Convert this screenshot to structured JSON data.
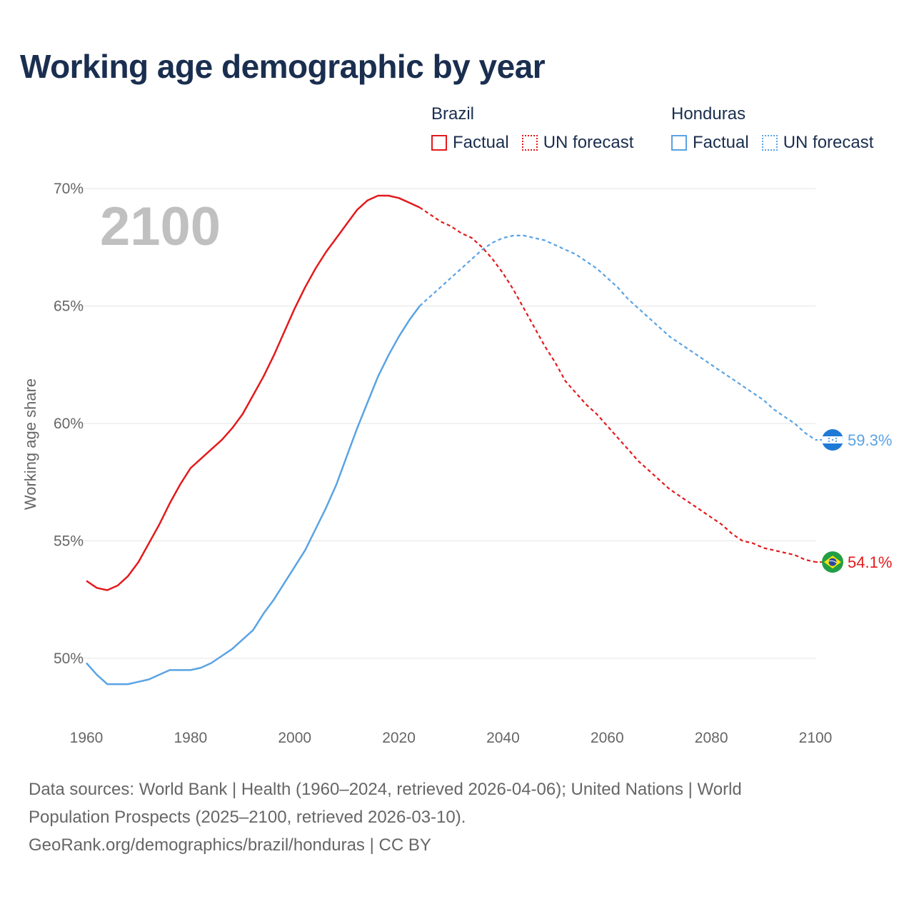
{
  "title": "Working age demographic by year",
  "legend": {
    "groups": [
      {
        "name": "Brazil",
        "color": "#e31a1c",
        "factual": "Factual",
        "forecast": "UN forecast"
      },
      {
        "name": "Honduras",
        "color": "#5aa3e3",
        "factual": "Factual",
        "forecast": "UN forecast"
      }
    ]
  },
  "sources": {
    "line1": "Data sources: World Bank | Health (1960–2024, retrieved 2026-04-06); United Nations | World",
    "line2": "Population Prospects (2025–2100, retrieved 2026-03-10).",
    "line3": "GeoRank.org/demographics/brazil/honduras | CC BY"
  },
  "chart_data": {
    "type": "line",
    "year_label": "2100",
    "ylabel": "Working age share",
    "xlim": [
      1960,
      2100
    ],
    "ylim": [
      47.2,
      70.4
    ],
    "x_ticks": [
      1960,
      1980,
      2000,
      2020,
      2040,
      2060,
      2080,
      2100
    ],
    "y_ticks": [
      50,
      55,
      60,
      65,
      70
    ],
    "y_tick_labels": [
      "50%",
      "55%",
      "60%",
      "65%",
      "70%"
    ],
    "factual_range": [
      1960,
      2024
    ],
    "forecast_range": [
      2024,
      2100
    ],
    "series": [
      {
        "name": "Brazil",
        "color": "#e31a1c",
        "end_label": "54.1%",
        "flag": "brazil-flag",
        "points": [
          [
            1960,
            53.3
          ],
          [
            1962,
            53.0
          ],
          [
            1964,
            52.9
          ],
          [
            1966,
            53.1
          ],
          [
            1968,
            53.5
          ],
          [
            1970,
            54.1
          ],
          [
            1972,
            54.9
          ],
          [
            1974,
            55.7
          ],
          [
            1976,
            56.6
          ],
          [
            1978,
            57.4
          ],
          [
            1980,
            58.1
          ],
          [
            1982,
            58.5
          ],
          [
            1984,
            58.9
          ],
          [
            1986,
            59.3
          ],
          [
            1988,
            59.8
          ],
          [
            1990,
            60.4
          ],
          [
            1992,
            61.2
          ],
          [
            1994,
            62.0
          ],
          [
            1996,
            62.9
          ],
          [
            1998,
            63.9
          ],
          [
            2000,
            64.9
          ],
          [
            2002,
            65.8
          ],
          [
            2004,
            66.6
          ],
          [
            2006,
            67.3
          ],
          [
            2008,
            67.9
          ],
          [
            2010,
            68.5
          ],
          [
            2012,
            69.1
          ],
          [
            2014,
            69.5
          ],
          [
            2016,
            69.7
          ],
          [
            2018,
            69.7
          ],
          [
            2020,
            69.6
          ],
          [
            2022,
            69.4
          ],
          [
            2024,
            69.2
          ],
          [
            2026,
            68.9
          ],
          [
            2028,
            68.6
          ],
          [
            2030,
            68.4
          ],
          [
            2032,
            68.1
          ],
          [
            2034,
            67.9
          ],
          [
            2036,
            67.5
          ],
          [
            2038,
            67.0
          ],
          [
            2040,
            66.4
          ],
          [
            2042,
            65.7
          ],
          [
            2044,
            64.9
          ],
          [
            2046,
            64.1
          ],
          [
            2048,
            63.3
          ],
          [
            2050,
            62.6
          ],
          [
            2052,
            61.8
          ],
          [
            2054,
            61.3
          ],
          [
            2056,
            60.8
          ],
          [
            2058,
            60.4
          ],
          [
            2060,
            59.9
          ],
          [
            2062,
            59.4
          ],
          [
            2064,
            58.9
          ],
          [
            2066,
            58.4
          ],
          [
            2068,
            58.0
          ],
          [
            2070,
            57.6
          ],
          [
            2072,
            57.2
          ],
          [
            2074,
            56.9
          ],
          [
            2076,
            56.6
          ],
          [
            2078,
            56.3
          ],
          [
            2080,
            56.0
          ],
          [
            2082,
            55.7
          ],
          [
            2084,
            55.3
          ],
          [
            2086,
            55.0
          ],
          [
            2088,
            54.9
          ],
          [
            2090,
            54.7
          ],
          [
            2092,
            54.6
          ],
          [
            2094,
            54.5
          ],
          [
            2096,
            54.4
          ],
          [
            2098,
            54.2
          ],
          [
            2100,
            54.1
          ]
        ]
      },
      {
        "name": "Honduras",
        "color": "#5aa3e3",
        "end_label": "59.3%",
        "flag": "honduras-flag",
        "points": [
          [
            1960,
            49.8
          ],
          [
            1962,
            49.3
          ],
          [
            1964,
            48.9
          ],
          [
            1966,
            48.9
          ],
          [
            1968,
            48.9
          ],
          [
            1970,
            49.0
          ],
          [
            1972,
            49.1
          ],
          [
            1974,
            49.3
          ],
          [
            1976,
            49.5
          ],
          [
            1978,
            49.5
          ],
          [
            1980,
            49.5
          ],
          [
            1982,
            49.6
          ],
          [
            1984,
            49.8
          ],
          [
            1986,
            50.1
          ],
          [
            1988,
            50.4
          ],
          [
            1990,
            50.8
          ],
          [
            1992,
            51.2
          ],
          [
            1994,
            51.9
          ],
          [
            1996,
            52.5
          ],
          [
            1998,
            53.2
          ],
          [
            2000,
            53.9
          ],
          [
            2002,
            54.6
          ],
          [
            2004,
            55.5
          ],
          [
            2006,
            56.4
          ],
          [
            2008,
            57.4
          ],
          [
            2010,
            58.6
          ],
          [
            2012,
            59.8
          ],
          [
            2014,
            60.9
          ],
          [
            2016,
            62.0
          ],
          [
            2018,
            62.9
          ],
          [
            2020,
            63.7
          ],
          [
            2022,
            64.4
          ],
          [
            2024,
            65.0
          ],
          [
            2026,
            65.4
          ],
          [
            2028,
            65.8
          ],
          [
            2030,
            66.2
          ],
          [
            2032,
            66.6
          ],
          [
            2034,
            67.0
          ],
          [
            2036,
            67.4
          ],
          [
            2038,
            67.7
          ],
          [
            2040,
            67.9
          ],
          [
            2042,
            68.0
          ],
          [
            2044,
            68.0
          ],
          [
            2046,
            67.9
          ],
          [
            2048,
            67.8
          ],
          [
            2050,
            67.6
          ],
          [
            2052,
            67.4
          ],
          [
            2054,
            67.2
          ],
          [
            2056,
            66.9
          ],
          [
            2058,
            66.6
          ],
          [
            2060,
            66.2
          ],
          [
            2062,
            65.8
          ],
          [
            2064,
            65.3
          ],
          [
            2066,
            64.9
          ],
          [
            2068,
            64.5
          ],
          [
            2070,
            64.1
          ],
          [
            2072,
            63.7
          ],
          [
            2074,
            63.4
          ],
          [
            2076,
            63.1
          ],
          [
            2078,
            62.8
          ],
          [
            2080,
            62.5
          ],
          [
            2082,
            62.2
          ],
          [
            2084,
            61.9
          ],
          [
            2086,
            61.6
          ],
          [
            2088,
            61.3
          ],
          [
            2090,
            61.0
          ],
          [
            2092,
            60.6
          ],
          [
            2094,
            60.3
          ],
          [
            2096,
            60.0
          ],
          [
            2098,
            59.6
          ],
          [
            2100,
            59.3
          ]
        ]
      }
    ]
  }
}
